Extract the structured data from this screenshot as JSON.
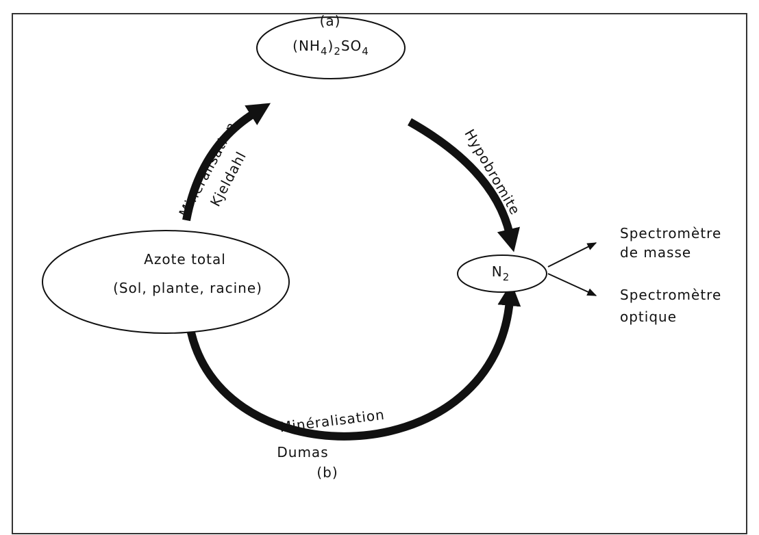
{
  "labels": {
    "a": "(a)",
    "b": "(b)"
  },
  "nodes": [
    {
      "label": [
        "Azote total",
        "(Sol, plante, racine)"
      ]
    },
    {
      "label": [
        "(NH",
        "4",
        ")",
        "2",
        "SO",
        "4"
      ]
    },
    {
      "label": [
        "N",
        "2"
      ]
    }
  ],
  "edges": [
    {
      "label": [
        "Minéralisation",
        "Kjeldahl"
      ]
    },
    {
      "label": [
        "Hypobromite"
      ]
    },
    {
      "label": [
        "Minéralisation",
        "Dumas"
      ]
    }
  ],
  "outputs": [
    {
      "label": [
        "Spectromètre",
        "de masse"
      ]
    },
    {
      "label": [
        "Spectromètre",
        "optique"
      ]
    }
  ]
}
